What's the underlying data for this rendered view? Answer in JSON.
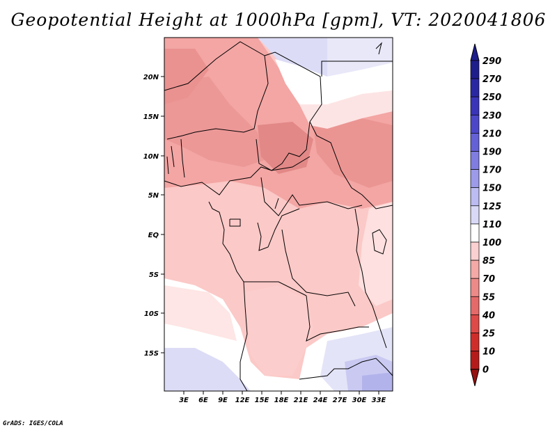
{
  "title": "Geopotential Height at 1000hPa [gpm], VT: 2020041806",
  "credit": "GrADS: IGES/COLA",
  "map": {
    "lat_labels": [
      "20N",
      "15N",
      "10N",
      "5N",
      "EQ",
      "5S",
      "10S",
      "15S"
    ],
    "lon_labels": [
      "3E",
      "6E",
      "9E",
      "12E",
      "15E",
      "18E",
      "21E",
      "24E",
      "27E",
      "30E",
      "33E"
    ]
  },
  "colorbar": {
    "levels": [
      "290",
      "270",
      "250",
      "230",
      "210",
      "190",
      "170",
      "150",
      "125",
      "110",
      "100",
      "85",
      "70",
      "55",
      "40",
      "25",
      "10",
      "0"
    ],
    "colors": [
      "#1e1d8c",
      "#2a27a3",
      "#3a34b8",
      "#4c47c9",
      "#6460d6",
      "#7f7de0",
      "#9d9be9",
      "#bcbcf2",
      "#d9d9f7",
      "#ffffff",
      "#fbd0d0",
      "#f4a9a7",
      "#ec8a88",
      "#e46a69",
      "#dd4a48",
      "#cf2d2a",
      "#b41b1a",
      "#951210"
    ]
  }
}
